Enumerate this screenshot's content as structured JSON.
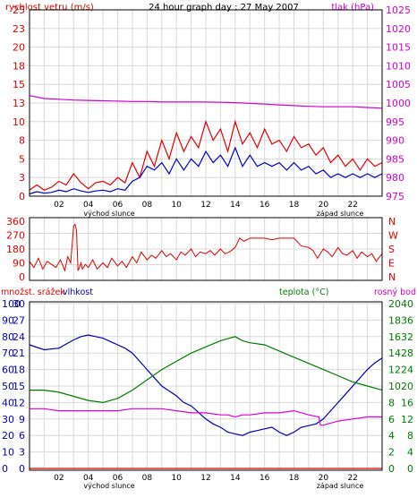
{
  "colors": {
    "wind_avg": "#0000c8",
    "wind_gust": "#e00000",
    "pressure": "#d000d0",
    "humidity": "#0000b0",
    "temperature": "#007a00",
    "dewpoint": "#dd00dd",
    "precip": "#e00000",
    "grid": "#d8d8d8",
    "frame": "#000000"
  },
  "chart_data": [
    {
      "type": "line",
      "title": "24 hour graph day : 27 May 2007",
      "ylabel_left": "rychlost vetru (m/s)",
      "ylabel_right": "tlak (hPa)",
      "xlabel": "",
      "x_ticks": [
        "02",
        "04",
        "06",
        "08",
        "10",
        "12",
        "14",
        "16",
        "18",
        "20",
        "22"
      ],
      "x_notes": [
        "východ slunce",
        "západ slunce"
      ],
      "xlim": [
        0,
        24
      ],
      "y_left_ticks": [
        "0",
        "3",
        "5",
        "8",
        "10",
        "13",
        "15",
        "18",
        "20",
        "23",
        "25"
      ],
      "y_left_lim": [
        0,
        25
      ],
      "y_right_ticks": [
        "975",
        "980",
        "985",
        "990",
        "995",
        "1000",
        "1005",
        "1010",
        "1015",
        "1020",
        "1025"
      ],
      "y_right_lim": [
        975,
        1025
      ],
      "grid": true,
      "series": [
        {
          "key": "gust",
          "axis": "left",
          "x": [
            0,
            0.5,
            1,
            1.5,
            2,
            2.5,
            3,
            3.5,
            4,
            4.5,
            5,
            5.5,
            6,
            6.5,
            7,
            7.5,
            8,
            8.5,
            9,
            9.5,
            10,
            10.5,
            11,
            11.5,
            12,
            12.5,
            13,
            13.5,
            14,
            14.5,
            15,
            15.5,
            16,
            16.5,
            17,
            17.5,
            18,
            18.5,
            19,
            19.5,
            20,
            20.5,
            21,
            21.5,
            22,
            22.5,
            23,
            23.5,
            24
          ],
          "values": [
            0.8,
            1.5,
            0.8,
            1.2,
            2,
            1.5,
            3,
            1.8,
            1,
            1.8,
            2,
            1.5,
            2.5,
            1.8,
            4.5,
            2.5,
            6,
            4,
            7.5,
            5,
            8.5,
            6,
            8,
            6.5,
            10,
            7.5,
            9,
            6,
            10,
            7,
            8.5,
            6.5,
            9,
            7,
            7.5,
            6,
            8,
            6.5,
            7,
            5.5,
            6.5,
            4.5,
            5.5,
            4,
            5,
            3.5,
            5,
            4,
            4.5
          ]
        },
        {
          "key": "avg",
          "axis": "left",
          "x": [
            0,
            0.5,
            1,
            1.5,
            2,
            2.5,
            3,
            3.5,
            4,
            4.5,
            5,
            5.5,
            6,
            6.5,
            7,
            7.5,
            8,
            8.5,
            9,
            9.5,
            10,
            10.5,
            11,
            11.5,
            12,
            12.5,
            13,
            13.5,
            14,
            14.5,
            15,
            15.5,
            16,
            16.5,
            17,
            17.5,
            18,
            18.5,
            19,
            19.5,
            20,
            20.5,
            21,
            21.5,
            22,
            22.5,
            23,
            23.5,
            24
          ],
          "values": [
            0.3,
            0.6,
            0.4,
            0.5,
            0.8,
            0.6,
            1,
            0.7,
            0.5,
            0.7,
            0.8,
            0.6,
            1,
            0.8,
            2,
            2.5,
            4,
            3.5,
            4.5,
            3,
            5,
            3.5,
            5,
            4,
            6,
            4.5,
            5.5,
            4,
            6.5,
            4,
            5.5,
            4,
            4.5,
            4,
            4.5,
            3.5,
            4.5,
            3.5,
            4,
            3,
            3.5,
            2.5,
            3,
            2.5,
            3,
            2.5,
            3,
            2.5,
            3
          ]
        },
        {
          "key": "pressure",
          "axis": "right",
          "x": [
            0,
            1,
            2,
            3,
            4,
            5,
            6,
            7,
            8,
            9,
            10,
            11,
            12,
            13,
            14,
            15,
            16,
            17,
            18,
            19,
            20,
            21,
            22,
            23,
            24
          ],
          "values": [
            1002,
            1001.2,
            1001,
            1000.8,
            1000.7,
            1000.6,
            1000.5,
            1000.4,
            1000.4,
            1000.3,
            1000.3,
            1000.3,
            1000.3,
            1000.2,
            1000.1,
            999.9,
            999.7,
            999.5,
            999.3,
            999.1,
            999,
            999,
            999,
            998.8,
            998.6
          ]
        }
      ]
    },
    {
      "type": "scatter",
      "title": "",
      "ylabel": "",
      "y_ticks": [
        "360",
        "270",
        "180",
        "90",
        "0"
      ],
      "y_ticks_right": [
        "N",
        "W",
        "S",
        "E",
        "N"
      ],
      "ylim": [
        0,
        360
      ],
      "x_ticks": [],
      "series": [
        {
          "key": "wind_dir",
          "x": [
            0,
            0.3,
            0.6,
            0.9,
            1.2,
            1.5,
            1.8,
            2.1,
            2.4,
            2.6,
            2.8,
            3,
            3.1,
            3.2,
            3.3,
            3.4,
            3.5,
            3.6,
            3.8,
            4,
            4.3,
            4.6,
            5,
            5.3,
            5.6,
            6,
            6.3,
            6.6,
            7,
            7.3,
            7.6,
            8,
            8.3,
            8.6,
            9,
            9.3,
            9.6,
            10,
            10.3,
            10.6,
            11,
            11.3,
            11.6,
            12,
            12.3,
            12.6,
            13,
            13.3,
            13.6,
            14,
            14.3,
            14.6,
            15,
            15.5,
            16,
            16.5,
            17,
            17.5,
            18,
            18.5,
            19,
            19.3,
            19.6,
            20,
            20.3,
            20.6,
            21,
            21.3,
            21.6,
            22,
            22.3,
            22.6,
            23,
            23.3,
            23.6,
            24
          ],
          "values": [
            100,
            60,
            120,
            50,
            100,
            80,
            60,
            110,
            40,
            130,
            90,
            330,
            340,
            300,
            40,
            60,
            90,
            50,
            80,
            60,
            110,
            50,
            90,
            60,
            120,
            70,
            100,
            60,
            130,
            90,
            160,
            110,
            140,
            120,
            170,
            130,
            150,
            110,
            160,
            140,
            180,
            130,
            160,
            150,
            170,
            140,
            180,
            150,
            160,
            190,
            250,
            230,
            250,
            250,
            250,
            240,
            250,
            250,
            250,
            200,
            190,
            170,
            120,
            180,
            160,
            130,
            190,
            150,
            140,
            170,
            120,
            160,
            130,
            150,
            100,
            150
          ]
        }
      ]
    },
    {
      "type": "line",
      "title": "",
      "ylabel_left": "množst. srážek",
      "ylabel_left2": "vlhkost",
      "ylabel_right": "teplota (°C)",
      "ylabel_right2": "rosný bod",
      "x_ticks": [
        "02",
        "04",
        "06",
        "08",
        "10",
        "12",
        "14",
        "16",
        "18",
        "20",
        "22"
      ],
      "x_notes": [
        "východ slunce",
        "západ slunce"
      ],
      "xlim": [
        0,
        24
      ],
      "y_left_ticks": [
        "0",
        "3",
        "6",
        "9",
        "12",
        "15",
        "18",
        "21",
        "24",
        "27",
        "30"
      ],
      "y_left_ticks2": [
        "0",
        "10",
        "20",
        "30",
        "40",
        "50",
        "60",
        "70",
        "80",
        "90",
        "100"
      ],
      "y_left_lim": [
        0,
        30
      ],
      "y_right_ticks": [
        "0",
        "2",
        "4",
        "6",
        "8",
        "10",
        "12",
        "14",
        "16",
        "18",
        "20"
      ],
      "y_right_lim": [
        0,
        20
      ],
      "y_right_ticks2": [
        "0",
        "4",
        "8",
        "12",
        "16",
        "20",
        "24",
        "28",
        "32",
        "36",
        "40"
      ],
      "grid": true,
      "series": [
        {
          "key": "humidity",
          "axis": "left2",
          "x": [
            0,
            1,
            2,
            3,
            3.5,
            4,
            4.5,
            5,
            5.5,
            6,
            6.5,
            7,
            7.5,
            8,
            8.5,
            9,
            9.5,
            10,
            10.5,
            11,
            11.5,
            12,
            12.5,
            13,
            13.5,
            14,
            14.5,
            15,
            15.5,
            16,
            16.5,
            17,
            17.5,
            18,
            18.5,
            19,
            19.5,
            20,
            20.5,
            21,
            21.5,
            22,
            22.5,
            23,
            23.5,
            24
          ],
          "values": [
            75,
            72,
            73,
            78,
            80,
            81,
            80,
            79,
            77,
            75,
            73,
            70,
            65,
            60,
            55,
            50,
            47,
            44,
            40,
            38,
            34,
            30,
            27,
            25,
            22,
            21,
            20,
            22,
            23,
            24,
            25,
            22,
            20,
            22,
            25,
            26,
            27,
            30,
            35,
            40,
            45,
            50,
            55,
            60,
            64,
            67
          ]
        },
        {
          "key": "temperature",
          "axis": "right2",
          "x": [
            0,
            1,
            2,
            3,
            4,
            5,
            6,
            7,
            8,
            9,
            10,
            11,
            12,
            13,
            13.5,
            14,
            14.5,
            15,
            16,
            17,
            18,
            19,
            20,
            21,
            22,
            23,
            24
          ],
          "values": [
            19,
            19,
            18.5,
            17.5,
            16.5,
            16,
            17,
            19,
            21.5,
            24,
            26,
            28,
            29.5,
            31,
            31.5,
            32,
            31,
            30.5,
            30,
            28.5,
            27,
            25.5,
            24,
            22.5,
            21,
            20,
            19
          ]
        },
        {
          "key": "dewpoint",
          "axis": "right2",
          "x": [
            0,
            1,
            2,
            3,
            4,
            5,
            6,
            7,
            8,
            9,
            10,
            11,
            12,
            13,
            13.5,
            14,
            14.5,
            15,
            16,
            17,
            18,
            19,
            19.7,
            19.8,
            20,
            21,
            22,
            23,
            24
          ],
          "values": [
            14.5,
            14.5,
            14,
            14,
            14,
            14,
            14,
            14.5,
            14.5,
            14.5,
            14,
            13.5,
            13.5,
            13,
            13,
            12.5,
            13,
            13,
            13.5,
            13.5,
            14,
            13,
            12.5,
            10.5,
            10.5,
            11.5,
            12,
            12.5,
            12.5
          ]
        },
        {
          "key": "precip",
          "axis": "left",
          "x": [
            0,
            24
          ],
          "values": [
            0,
            0
          ]
        }
      ]
    }
  ]
}
